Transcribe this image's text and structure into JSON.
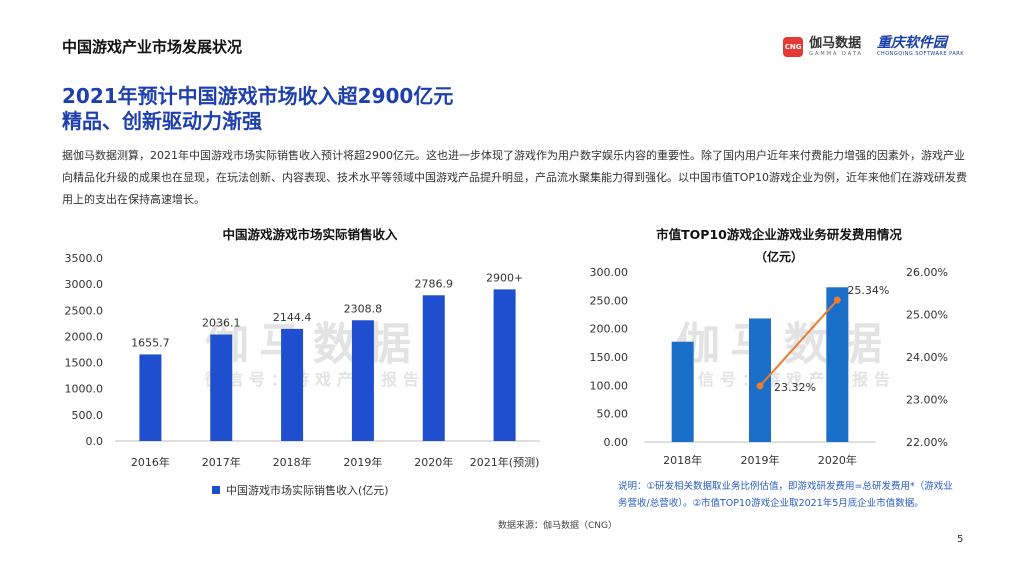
{
  "header": {
    "section_title": "中国游戏产业市场发展状况",
    "logo_cng_mark": "CNG",
    "logo_cng_cn": "伽马数据",
    "logo_cng_en": "GAMMA DATA",
    "logo_cq_cn": "重庆软件园",
    "logo_cq_en": "CHONGQING SOFTWARE PARK"
  },
  "headline": {
    "line1": "2021年预计中国游戏市场收入超2900亿元",
    "line2": "精品、创新驱动力渐强"
  },
  "description": "据伽马数据测算，2021年中国游戏市场实际销售收入预计将超2900亿元。这也进一步体现了游戏作为用户数字娱乐内容的重要性。除了国内用户近年来付费能力增强的因素外，游戏产业向精品化升级的成果也在显现，在玩法创新、内容表现、技术水平等领域中国游戏产品提升明显，产品流水聚集能力得到强化。以中国市值TOP10游戏企业为例，近年来他们在游戏研发费用上的支出在保持高速增长。",
  "watermark": {
    "big": "伽马数据",
    "small": "微信号：游戏产业报告"
  },
  "chart_data": [
    {
      "type": "bar",
      "title": "中国游戏游戏市场实际销售收入",
      "categories": [
        "2016年",
        "2017年",
        "2018年",
        "2019年",
        "2020年",
        "2021年(预测)"
      ],
      "series": [
        {
          "name": "中国游戏市场实际销售收入(亿元)",
          "values": [
            1655.7,
            2036.1,
            2144.4,
            2308.8,
            2786.9,
            2900
          ],
          "labels": [
            "1655.7",
            "2036.1",
            "2144.4",
            "2308.8",
            "2786.9",
            "2900+"
          ]
        }
      ],
      "ylim": [
        0,
        3500
      ],
      "yticks": [
        "0.0",
        "500.0",
        "1000.0",
        "1500.0",
        "2000.0",
        "2500.0",
        "3000.0",
        "3500.0"
      ],
      "legend": "bottom",
      "color": "#1f4ecf",
      "grid": false
    },
    {
      "type": "bar+line",
      "title": "市值TOP10游戏企业游戏业务研发费用情况",
      "subtitle": "（亿元）",
      "categories": [
        "2018年",
        "2019年",
        "2020年"
      ],
      "bar_values": [
        177,
        218,
        273
      ],
      "line_values": [
        23.32,
        25.34
      ],
      "line_x": [
        "2019年",
        "2020年"
      ],
      "line_labels": [
        "23.32%",
        "25.34%"
      ],
      "ylim_left": [
        0,
        300
      ],
      "yticks_left": [
        "0.00",
        "50.00",
        "100.00",
        "150.00",
        "200.00",
        "250.00",
        "300.00"
      ],
      "ylim_right": [
        22,
        26
      ],
      "yticks_right": [
        "22.00%",
        "23.00%",
        "24.00%",
        "25.00%",
        "26.00%"
      ],
      "bar_color": "#1a6fc9",
      "line_color": "#ec7c30"
    }
  ],
  "note": "说明：①研发相关数据取业务比例估值，即游戏研发费用=总研发费用*（游戏业务营收/总营收）。②市值TOP10游戏企业取2021年5月底企业市值数据。",
  "source": "数据来源：伽马数据（CNG）",
  "page_number": "5"
}
